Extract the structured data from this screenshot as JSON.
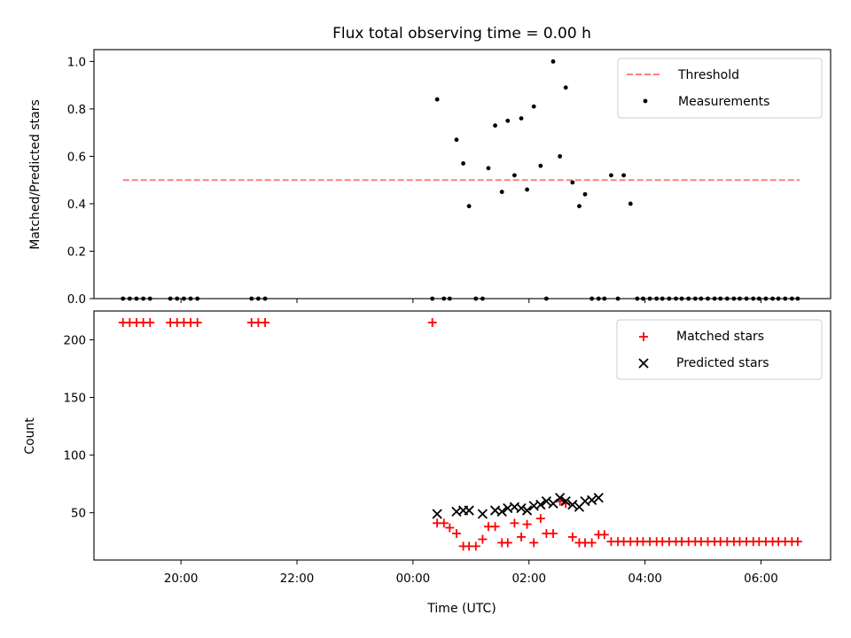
{
  "chart_data": [
    {
      "type": "scatter",
      "title": "Flux total observing time = 0.00 h",
      "xlabel": "",
      "ylabel": "Matched/Predicted stars",
      "ylim": [
        0,
        1.05
      ],
      "yticks": [
        "0.0",
        "0.2",
        "0.4",
        "0.6",
        "0.8",
        "1.0"
      ],
      "yticks_values": [
        0,
        0.2,
        0.4,
        0.6,
        0.8,
        1.0
      ],
      "legend_position": "top-right",
      "grid": false,
      "series": [
        {
          "name": "Threshold",
          "kind": "dashed-line",
          "color": "#ff7f7f",
          "x": [
            "19:00",
            "06:40"
          ],
          "values": [
            0.5,
            0.5
          ]
        },
        {
          "name": "Measurements",
          "kind": "dots",
          "color": "#000000",
          "x": [
            "19:00",
            "19:07",
            "19:14",
            "19:21",
            "19:28",
            "19:49",
            "19:56",
            "20:03",
            "20:10",
            "20:17",
            "21:13",
            "21:20",
            "21:27",
            "00:20",
            "00:25",
            "00:32",
            "00:38",
            "00:45",
            "00:52",
            "00:58",
            "01:05",
            "01:12",
            "01:18",
            "01:25",
            "01:32",
            "01:38",
            "01:45",
            "01:52",
            "01:58",
            "02:05",
            "02:12",
            "02:18",
            "02:25",
            "02:32",
            "02:38",
            "02:45",
            "02:52",
            "02:58",
            "03:05",
            "03:12",
            "03:18",
            "03:25",
            "03:32",
            "03:38",
            "03:45",
            "03:52",
            "03:58",
            "04:05",
            "04:12",
            "04:18",
            "04:25",
            "04:32",
            "04:38",
            "04:45",
            "04:52",
            "04:58",
            "05:05",
            "05:12",
            "05:18",
            "05:25",
            "05:32",
            "05:38",
            "05:45",
            "05:52",
            "05:58",
            "06:05",
            "06:12",
            "06:18",
            "06:25",
            "06:32",
            "06:38"
          ],
          "values": [
            0,
            0,
            0,
            0,
            0,
            0,
            0,
            0,
            0,
            0,
            0,
            0,
            0,
            0,
            0.84,
            0,
            0,
            0.67,
            0.57,
            0.39,
            0,
            0,
            0.55,
            0.73,
            0.45,
            0.75,
            0.52,
            0.76,
            0.46,
            0.81,
            0.56,
            0,
            1.0,
            0.6,
            0.89,
            0.49,
            0.39,
            0.44,
            0,
            0,
            0,
            0.52,
            0,
            0.52,
            0.4,
            0,
            0,
            0,
            0,
            0,
            0,
            0,
            0,
            0,
            0,
            0,
            0,
            0,
            0,
            0,
            0,
            0,
            0,
            0,
            0,
            0,
            0,
            0,
            0,
            0,
            0
          ]
        }
      ]
    },
    {
      "type": "scatter",
      "title": "",
      "xlabel": "Time (UTC)",
      "ylabel": "Count",
      "ylim": [
        9,
        225
      ],
      "yticks": [
        "50",
        "100",
        "150",
        "200"
      ],
      "yticks_values": [
        50,
        100,
        150,
        200
      ],
      "xticks": [
        "20:00",
        "22:00",
        "00:00",
        "02:00",
        "04:00",
        "06:00"
      ],
      "legend_position": "top-right",
      "grid": false,
      "series": [
        {
          "name": "Matched stars",
          "kind": "plus",
          "color": "#ff0000",
          "x": [
            "19:00",
            "19:07",
            "19:14",
            "19:21",
            "19:28",
            "19:49",
            "19:56",
            "20:03",
            "20:10",
            "20:17",
            "21:13",
            "21:20",
            "21:27",
            "00:20",
            "00:25",
            "00:32",
            "00:38",
            "00:45",
            "00:52",
            "00:58",
            "01:05",
            "01:12",
            "01:18",
            "01:25",
            "01:32",
            "01:38",
            "01:45",
            "01:52",
            "01:58",
            "02:05",
            "02:12",
            "02:18",
            "02:25",
            "02:32",
            "02:38",
            "02:45",
            "02:52",
            "02:58",
            "03:05",
            "03:12",
            "03:18",
            "03:25",
            "03:32",
            "03:38",
            "03:45",
            "03:52",
            "03:58",
            "04:05",
            "04:12",
            "04:18",
            "04:25",
            "04:32",
            "04:38",
            "04:45",
            "04:52",
            "04:58",
            "05:05",
            "05:12",
            "05:18",
            "05:25",
            "05:32",
            "05:38",
            "05:45",
            "05:52",
            "05:58",
            "06:05",
            "06:12",
            "06:18",
            "06:25",
            "06:32",
            "06:38"
          ],
          "values": [
            215,
            215,
            215,
            215,
            215,
            215,
            215,
            215,
            215,
            215,
            215,
            215,
            215,
            215,
            41,
            41,
            37,
            32,
            21,
            21,
            21,
            27,
            38,
            38,
            24,
            24,
            41,
            29,
            40,
            24,
            45,
            32,
            32,
            60,
            58,
            29,
            24,
            24,
            24,
            31,
            31,
            25,
            25,
            25,
            25,
            25,
            25,
            25,
            25,
            25,
            25,
            25,
            25,
            25,
            25,
            25,
            25,
            25,
            25,
            25,
            25,
            25,
            25,
            25,
            25,
            25,
            25,
            25,
            25,
            25,
            25
          ]
        },
        {
          "name": "Predicted stars",
          "kind": "cross",
          "color": "#000000",
          "x": [
            "00:25",
            "00:45",
            "00:52",
            "00:58",
            "01:12",
            "01:25",
            "01:32",
            "01:38",
            "01:45",
            "01:52",
            "01:58",
            "02:05",
            "02:12",
            "02:18",
            "02:25",
            "02:32",
            "02:38",
            "02:45",
            "02:52",
            "02:58",
            "03:05",
            "03:12"
          ],
          "values": [
            49,
            51,
            52,
            52,
            49,
            52,
            51,
            54,
            55,
            54,
            52,
            56,
            57,
            60,
            58,
            63,
            60,
            57,
            55,
            60,
            61,
            63
          ]
        }
      ]
    }
  ]
}
